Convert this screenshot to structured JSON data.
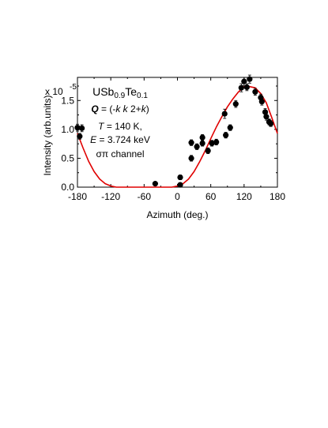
{
  "chart_data": {
    "type": "scatter",
    "title": "USb0.9Te0.1",
    "title_parts": {
      "base": "USb",
      "sub1": "0.9",
      "mid": "Te",
      "sub2": "0.1"
    },
    "annotations": {
      "q_symbol": "Q",
      "q_rest_prefix": " = (-",
      "q_k1": "k",
      "q_space": " ",
      "q_k2": "k",
      "q_mid": " 2+",
      "q_k3": "k",
      "q_close": ")",
      "t_symbol": "T",
      "t_value": " = 140 K,",
      "e_symbol": "E",
      "e_value": " = 3.724 keV",
      "channel": "σπ channel"
    },
    "xlabel": "Azimuth (deg.)",
    "ylabel": "Intensity (arb.units)",
    "y_multiplier": {
      "base": "x 10",
      "exponent": "-5"
    },
    "xlim": [
      -180,
      180
    ],
    "ylim": [
      0,
      1.9
    ],
    "xticks": [
      "-180",
      "-120",
      "-60",
      "0",
      "60",
      "120",
      "180"
    ],
    "xtick_values": [
      -180,
      -120,
      -60,
      0,
      60,
      120,
      180
    ],
    "yticks": [
      "0.0",
      "0.5",
      "1.0",
      "1.5"
    ],
    "ytick_values": [
      0.0,
      0.5,
      1.0,
      1.5
    ],
    "grid": false,
    "series": [
      {
        "kind": "points",
        "color": "#000000",
        "x": [
          -180,
          -176,
          -172,
          -40,
          5,
          5,
          25,
          25,
          35,
          45,
          45,
          55,
          62,
          70,
          85,
          87,
          95,
          105,
          115,
          120,
          125,
          130,
          140,
          150,
          152,
          158,
          160,
          165,
          168
        ],
        "y": [
          1.03,
          0.88,
          1.02,
          0.06,
          0.17,
          0.04,
          0.77,
          0.5,
          0.7,
          0.86,
          0.76,
          0.63,
          0.76,
          0.78,
          1.27,
          0.9,
          1.03,
          1.44,
          1.72,
          1.83,
          1.73,
          1.87,
          1.65,
          1.55,
          1.48,
          1.3,
          1.22,
          1.13,
          1.1
        ],
        "err": [
          0.06,
          0.05,
          0.06,
          0.03,
          0.04,
          0.03,
          0.05,
          0.05,
          0.05,
          0.05,
          0.05,
          0.05,
          0.05,
          0.05,
          0.08,
          0.05,
          0.05,
          0.06,
          0.07,
          0.07,
          0.06,
          0.07,
          0.06,
          0.06,
          0.06,
          0.06,
          0.06,
          0.05,
          0.05
        ]
      },
      {
        "kind": "fit-line",
        "color": "#e00000",
        "x": [
          -180,
          -170,
          -160,
          -150,
          -140,
          -130,
          -120,
          -110,
          -100,
          -90,
          -80,
          -70,
          -60,
          -50,
          -40,
          -30,
          -20,
          -10,
          0,
          10,
          20,
          30,
          40,
          50,
          60,
          70,
          80,
          90,
          100,
          110,
          120,
          130,
          140,
          150,
          160,
          170,
          180
        ],
        "y": [
          0.93,
          0.68,
          0.45,
          0.27,
          0.14,
          0.06,
          0.02,
          0.0,
          0.0,
          0.0,
          0.0,
          0.0,
          0.0,
          0.0,
          0.0,
          0.0,
          0.0,
          0.0,
          0.02,
          0.06,
          0.14,
          0.27,
          0.44,
          0.63,
          0.84,
          1.04,
          1.22,
          1.39,
          1.53,
          1.65,
          1.74,
          1.74,
          1.72,
          1.62,
          1.46,
          1.2,
          0.93
        ]
      }
    ]
  }
}
